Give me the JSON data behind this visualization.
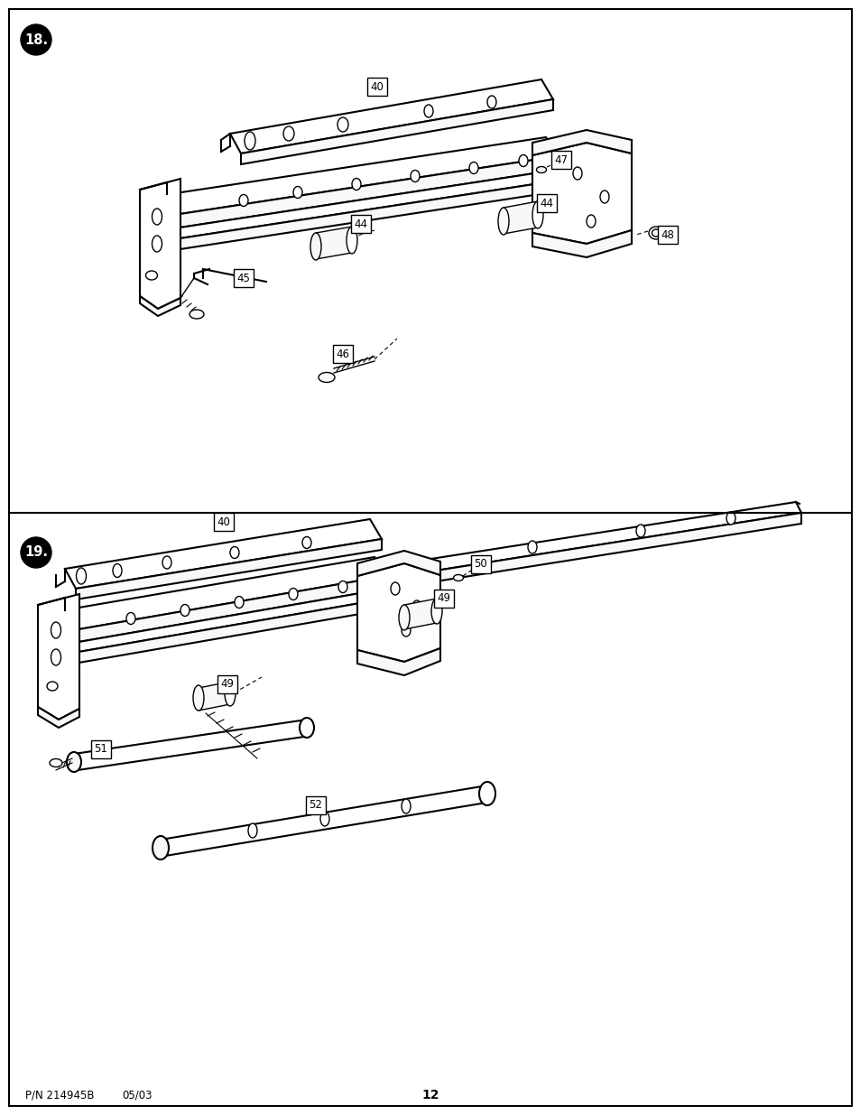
{
  "page_num": "12",
  "part_number": "P/N 214945B",
  "date": "05/03",
  "bg_color": "#ffffff",
  "fig_width": 9.54,
  "fig_height": 12.35,
  "dpi": 100
}
